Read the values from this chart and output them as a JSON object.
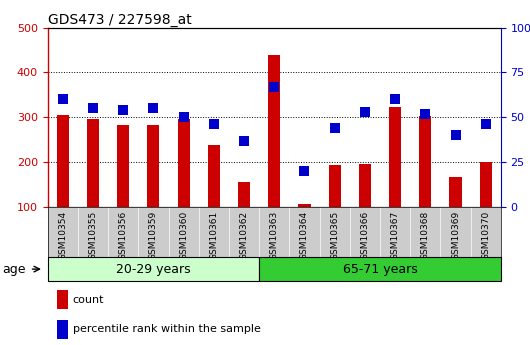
{
  "title": "GDS473 / 227598_at",
  "samples": [
    "GSM10354",
    "GSM10355",
    "GSM10356",
    "GSM10359",
    "GSM10360",
    "GSM10361",
    "GSM10362",
    "GSM10363",
    "GSM10364",
    "GSM10365",
    "GSM10366",
    "GSM10367",
    "GSM10368",
    "GSM10369",
    "GSM10370"
  ],
  "counts": [
    305,
    297,
    282,
    283,
    297,
    238,
    155,
    440,
    107,
    193,
    195,
    323,
    302,
    167,
    200
  ],
  "percentile_ranks": [
    60,
    55,
    54,
    55,
    50,
    46,
    37,
    67,
    20,
    44,
    53,
    60,
    52,
    40,
    46
  ],
  "group1_label": "20-29 years",
  "group2_label": "65-71 years",
  "group1_count": 7,
  "group2_count": 8,
  "ylim_left": [
    100,
    500
  ],
  "ylim_right": [
    0,
    100
  ],
  "yticks_left": [
    100,
    200,
    300,
    400,
    500
  ],
  "yticks_right": [
    0,
    25,
    50,
    75,
    100
  ],
  "bar_color": "#cc0000",
  "dot_color": "#0000cc",
  "group1_bg": "#ccffcc",
  "group2_bg": "#33cc33",
  "tick_bg": "#cccccc",
  "bar_width": 0.4,
  "dot_size": 50,
  "fig_width": 5.3,
  "fig_height": 3.45,
  "dpi": 100
}
